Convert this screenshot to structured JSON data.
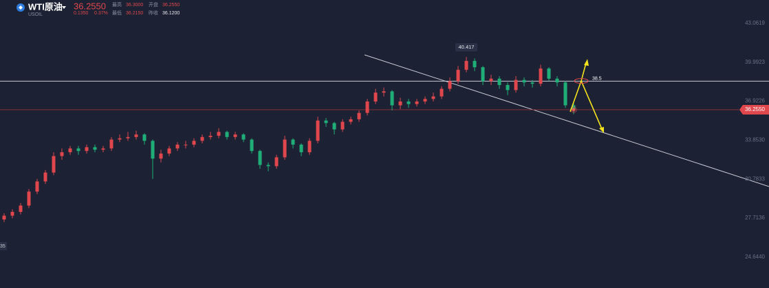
{
  "header": {
    "symbol": "WTI原油",
    "code": "USOIL",
    "price": "36.2550",
    "change": "0.1350",
    "change_pct": "0.37%",
    "high_label": "最高",
    "high": "36.3000",
    "open_label": "开盘",
    "open": "36.2550",
    "low_label": "最低",
    "low": "36.2150",
    "prev_close_label": "昨收",
    "prev_close": "36.1200"
  },
  "chart_data": {
    "type": "candlestick",
    "up_color": "#e0474c",
    "down_color": "#1fae78",
    "ylim": [
      22.2,
      44.9
    ],
    "yticks": [
      43.0619,
      39.9923,
      36.9226,
      {
        "value": 33.853,
        "label": "33.8530"
      },
      30.7833,
      27.7136,
      {
        "value": 24.644,
        "label": "24.6440"
      }
    ],
    "open": [
      27.6,
      27.9,
      28.2,
      28.7,
      29.8,
      30.6,
      31.3,
      32.6,
      32.9,
      33.2,
      33.0,
      33.3,
      33.1,
      33.2,
      33.9,
      34.0,
      34.1,
      34.3,
      33.8,
      32.4,
      32.8,
      33.2,
      33.5,
      33.5,
      33.8,
      34.1,
      34.2,
      34.5,
      34.1,
      34.3,
      33.9,
      33.0,
      31.9,
      31.8,
      32.5,
      33.9,
      33.5,
      32.9,
      33.8,
      35.4,
      35.2,
      34.7,
      35.3,
      35.5,
      36.0,
      36.9,
      37.6,
      37.7,
      36.6,
      36.9,
      36.7,
      36.9,
      37.1,
      37.3,
      37.9,
      38.5,
      39.4,
      40.1,
      39.6,
      38.5,
      38.7,
      38.2,
      37.8,
      38.6,
      38.4,
      38.3,
      39.5,
      38.7,
      38.4,
      36.6
    ],
    "high": [
      28.1,
      28.4,
      28.9,
      30.0,
      30.8,
      31.5,
      32.9,
      33.2,
      33.4,
      33.4,
      33.5,
      33.5,
      33.4,
      34.1,
      34.3,
      34.5,
      34.6,
      34.4,
      33.9,
      33.1,
      33.4,
      33.7,
      33.8,
      34.0,
      34.3,
      34.5,
      34.8,
      34.6,
      34.5,
      34.4,
      34.0,
      33.1,
      32.1,
      32.7,
      34.2,
      34.0,
      33.6,
      34.0,
      35.7,
      35.6,
      35.3,
      35.5,
      35.7,
      36.2,
      37.1,
      37.9,
      38.0,
      37.8,
      37.2,
      37.1,
      37.1,
      37.3,
      37.6,
      38.1,
      38.8,
      39.7,
      40.417,
      40.3,
      39.7,
      39.0,
      38.9,
      38.4,
      38.9,
      38.8,
      38.6,
      39.8,
      39.6,
      38.9,
      38.5,
      36.9
    ],
    "low": [
      27.4,
      27.7,
      28.0,
      28.5,
      29.6,
      30.4,
      31.1,
      32.3,
      32.7,
      32.7,
      32.8,
      32.9,
      32.9,
      33.0,
      33.7,
      33.8,
      33.9,
      33.5,
      30.8,
      32.1,
      32.6,
      33.0,
      33.2,
      33.3,
      33.6,
      33.9,
      34.0,
      33.9,
      33.9,
      33.7,
      32.8,
      31.6,
      31.4,
      31.6,
      32.3,
      33.2,
      32.6,
      32.7,
      33.6,
      34.9,
      34.3,
      34.5,
      35.1,
      35.3,
      35.8,
      36.7,
      37.3,
      36.2,
      36.3,
      36.4,
      36.5,
      36.7,
      36.9,
      37.1,
      37.7,
      38.3,
      39.2,
      39.3,
      38.2,
      38.2,
      37.9,
      37.4,
      37.6,
      38.1,
      38.0,
      38.1,
      38.5,
      38.1,
      36.4,
      35.9
    ],
    "close": [
      27.9,
      28.2,
      28.7,
      29.8,
      30.6,
      31.3,
      32.6,
      32.9,
      33.2,
      33.0,
      33.3,
      33.1,
      33.2,
      33.9,
      34.0,
      34.1,
      34.3,
      33.8,
      32.4,
      32.8,
      33.2,
      33.5,
      33.5,
      33.8,
      34.1,
      34.2,
      34.5,
      34.1,
      34.3,
      33.9,
      33.0,
      31.9,
      31.8,
      32.5,
      33.9,
      33.5,
      32.9,
      33.8,
      35.4,
      35.2,
      34.7,
      35.3,
      35.5,
      36.0,
      36.9,
      37.6,
      37.7,
      36.6,
      36.9,
      36.7,
      36.9,
      37.1,
      37.3,
      37.9,
      38.5,
      39.4,
      40.1,
      39.6,
      38.5,
      38.7,
      38.2,
      37.8,
      38.6,
      38.4,
      38.3,
      39.5,
      38.7,
      38.4,
      36.6,
      36.26
    ],
    "max_label": 40.417,
    "level": 38.5,
    "price_line": {
      "value": 36.255,
      "label": "36.2550"
    },
    "left_label": "35"
  }
}
